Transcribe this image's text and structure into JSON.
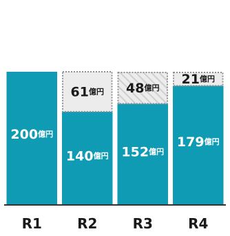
{
  "chart_data": {
    "type": "bar",
    "stacked": true,
    "categories": [
      "R1",
      "R2",
      "R3",
      "R4"
    ],
    "unit": "億円",
    "series": [
      {
        "values": [
          200,
          140,
          152,
          179
        ]
      },
      {
        "values": [
          0,
          61,
          48,
          21
        ]
      }
    ],
    "ylim": [
      0,
      230
    ],
    "grid": false,
    "colors": {
      "base": "#0f9bb4",
      "add_fill": "#ececec",
      "add_border": "#8f8f8f",
      "text_light": "#ffffff",
      "text_dark": "#1a1a1a",
      "axis": "#333333"
    },
    "hatched_category_index": 2
  }
}
